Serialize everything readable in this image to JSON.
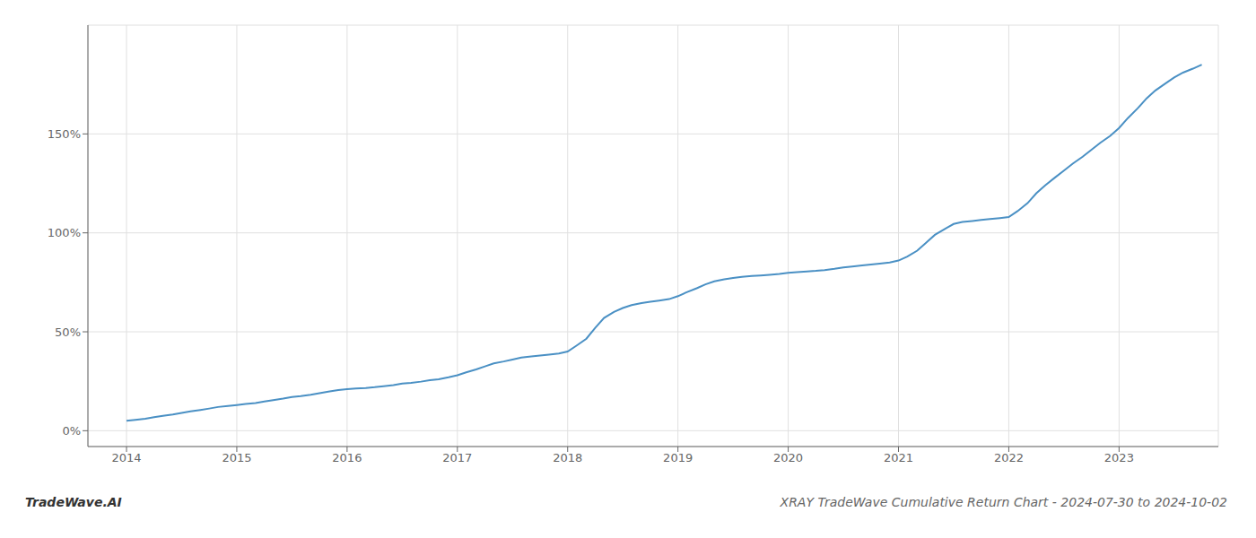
{
  "chart_data": {
    "type": "line",
    "title": "XRAY TradeWave Cumulative Return Chart - 2024-07-30 to 2024-10-02",
    "annotations": [
      "TradeWave.AI"
    ],
    "color": "#4a90c4",
    "grid": true,
    "x": [
      2014.0,
      2014.08,
      2014.17,
      2014.25,
      2014.33,
      2014.42,
      2014.5,
      2014.58,
      2014.67,
      2014.75,
      2014.83,
      2014.92,
      2015.0,
      2015.08,
      2015.17,
      2015.25,
      2015.33,
      2015.42,
      2015.5,
      2015.58,
      2015.67,
      2015.75,
      2015.83,
      2015.92,
      2016.0,
      2016.08,
      2016.17,
      2016.25,
      2016.33,
      2016.42,
      2016.5,
      2016.58,
      2016.67,
      2016.75,
      2016.83,
      2016.92,
      2017.0,
      2017.08,
      2017.17,
      2017.25,
      2017.33,
      2017.42,
      2017.5,
      2017.58,
      2017.67,
      2017.75,
      2017.83,
      2017.92,
      2018.0,
      2018.08,
      2018.17,
      2018.25,
      2018.33,
      2018.42,
      2018.5,
      2018.58,
      2018.67,
      2018.75,
      2018.83,
      2018.92,
      2019.0,
      2019.08,
      2019.17,
      2019.25,
      2019.33,
      2019.42,
      2019.5,
      2019.58,
      2019.67,
      2019.75,
      2019.83,
      2019.92,
      2020.0,
      2020.08,
      2020.17,
      2020.25,
      2020.33,
      2020.42,
      2020.5,
      2020.58,
      2020.67,
      2020.75,
      2020.83,
      2020.92,
      2021.0,
      2021.08,
      2021.17,
      2021.25,
      2021.33,
      2021.42,
      2021.5,
      2021.58,
      2021.67,
      2021.75,
      2021.83,
      2021.92,
      2022.0,
      2022.08,
      2022.17,
      2022.25,
      2022.33,
      2022.42,
      2022.5,
      2022.58,
      2022.67,
      2022.75,
      2022.83,
      2022.92,
      2023.0,
      2023.08,
      2023.17,
      2023.25,
      2023.33,
      2023.42,
      2023.5,
      2023.58,
      2023.67,
      2023.75
    ],
    "values": [
      5.0,
      5.5,
      6.0,
      6.8,
      7.5,
      8.2,
      9.0,
      9.8,
      10.5,
      11.2,
      12.0,
      12.5,
      13.0,
      13.5,
      14.0,
      14.8,
      15.5,
      16.2,
      17.0,
      17.5,
      18.2,
      19.0,
      19.8,
      20.5,
      21.0,
      21.3,
      21.6,
      22.0,
      22.5,
      23.0,
      23.8,
      24.2,
      24.8,
      25.5,
      26.0,
      27.0,
      28.0,
      29.5,
      31.0,
      32.5,
      34.0,
      35.0,
      36.0,
      37.0,
      37.5,
      38.0,
      38.5,
      39.0,
      40.0,
      43.0,
      46.5,
      52.0,
      57.0,
      60.0,
      62.0,
      63.5,
      64.5,
      65.2,
      65.8,
      66.5,
      68.0,
      70.0,
      72.0,
      74.0,
      75.5,
      76.5,
      77.2,
      77.8,
      78.2,
      78.5,
      78.8,
      79.2,
      79.8,
      80.2,
      80.5,
      80.8,
      81.2,
      81.8,
      82.5,
      83.0,
      83.5,
      84.0,
      84.5,
      85.0,
      86.0,
      88.0,
      91.0,
      95.0,
      99.0,
      102.0,
      104.5,
      105.5,
      106.0,
      106.5,
      107.0,
      107.5,
      108.0,
      111.0,
      115.0,
      120.0,
      124.0,
      128.0,
      131.5,
      135.0,
      138.5,
      142.0,
      145.5,
      149.0,
      153.0,
      158.0,
      163.0,
      168.0,
      172.0,
      175.5,
      178.5,
      181.0,
      183.0,
      185.0
    ],
    "xlim": [
      2013.65,
      2023.9
    ],
    "ylim": [
      -8,
      205
    ],
    "xticks": [
      2014,
      2015,
      2016,
      2017,
      2018,
      2019,
      2020,
      2021,
      2022,
      2023
    ],
    "yticks": [
      {
        "value": 0,
        "label": "0%"
      },
      {
        "value": 50,
        "label": "50%"
      },
      {
        "value": 100,
        "label": "100%"
      },
      {
        "value": 150,
        "label": "150%"
      }
    ]
  }
}
